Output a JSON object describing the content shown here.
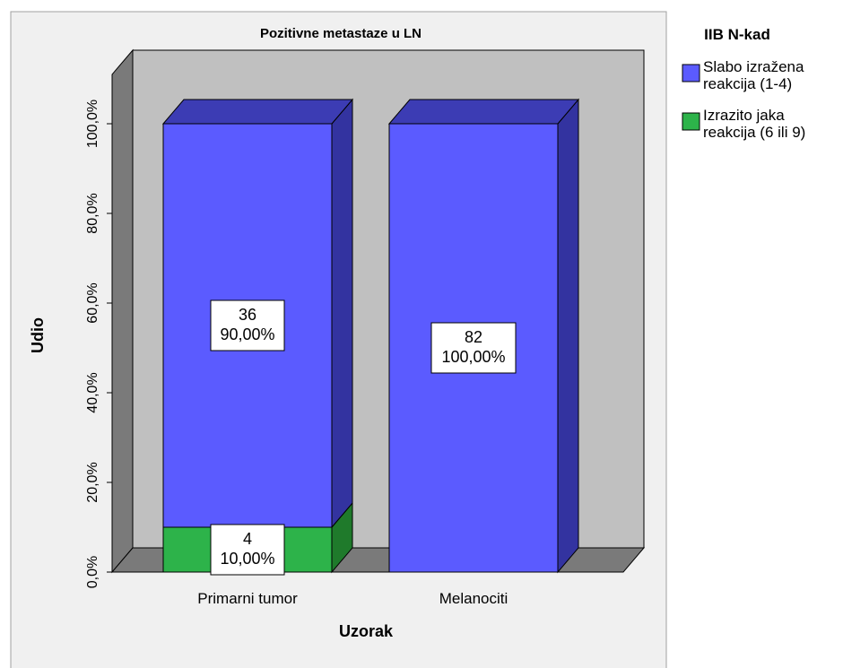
{
  "chart_data": {
    "type": "bar",
    "stacked": true,
    "percent_scale": true,
    "title": "Pozitivne metastaze u LN",
    "xlabel": "Uzorak",
    "ylabel": "Udio",
    "categories": [
      "Primarni tumor",
      "Melanociti"
    ],
    "ylim": [
      0,
      100
    ],
    "y_ticks": [
      "0,0%",
      "20,0%",
      "40,0%",
      "60,0%",
      "80,0%",
      "100,0%"
    ],
    "y_tick_values": [
      0,
      20,
      40,
      60,
      80,
      100
    ],
    "legend": {
      "title": "IIB N-kad",
      "position": "right",
      "entries": [
        {
          "label_lines": [
            "Slabo izražena",
            "reakcija (1-4)"
          ],
          "color": "#5b5bff"
        },
        {
          "label_lines": [
            "Izrazito jaka",
            "reakcija (6 ili 9)"
          ],
          "color": "#2db34a"
        }
      ]
    },
    "series": [
      {
        "color": "#5b5bff",
        "values": [
          90,
          100
        ],
        "counts": [
          "36",
          "82"
        ],
        "percent_labels": [
          "90,00%",
          "100,00%"
        ]
      },
      {
        "color": "#2db34a",
        "values": [
          10,
          0
        ],
        "counts": [
          "4",
          ""
        ],
        "percent_labels": [
          "10,00%",
          ""
        ]
      }
    ],
    "colors": {
      "back_wall": "#c0c0c0",
      "side_wall": "#7a7a7a",
      "floor": "#7a7a7a",
      "blue_top": "#3c3cb4",
      "blue_side": "#3333a0",
      "green_top": "#22882f",
      "green_side": "#1f7a2b"
    }
  }
}
